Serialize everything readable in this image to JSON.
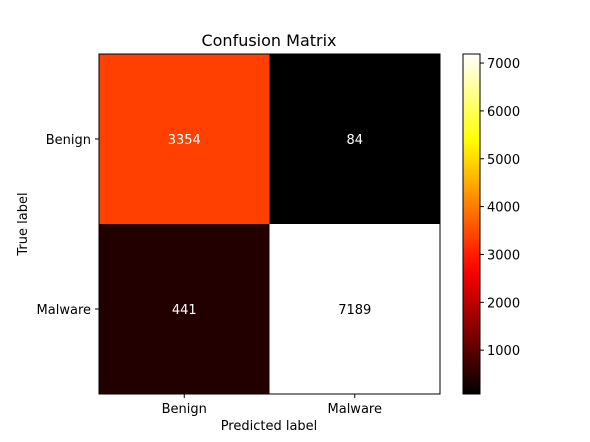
{
  "chart_data": {
    "type": "heatmap",
    "title": "Confusion Matrix",
    "xlabel": "Predicted label",
    "ylabel": "True label",
    "x_categories": [
      "Benign",
      "Malware"
    ],
    "y_categories": [
      "Benign",
      "Malware"
    ],
    "values": [
      [
        3354,
        84
      ],
      [
        441,
        7189
      ]
    ],
    "colormap": "hot",
    "value_range": [
      84,
      7189
    ],
    "colorbar": {
      "ticks": [
        1000,
        2000,
        3000,
        4000,
        5000,
        6000,
        7000
      ]
    },
    "cell_text_colors": {
      "on_dark": "#ffffff",
      "on_light": "#000000"
    },
    "grid": false
  }
}
